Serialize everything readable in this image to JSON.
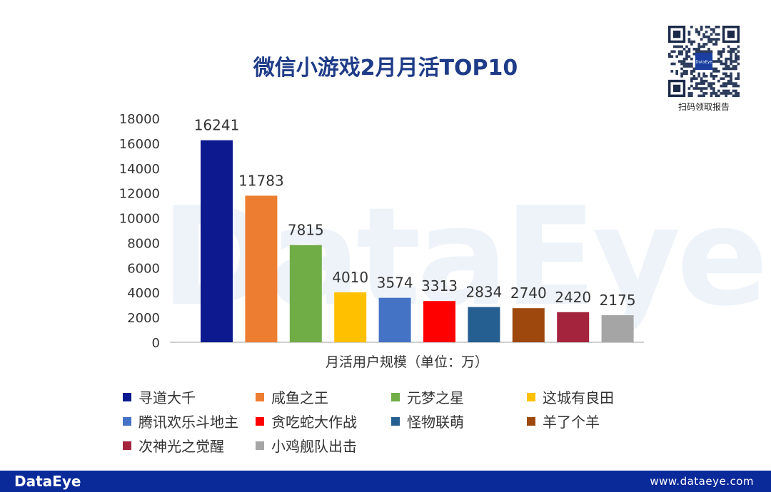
{
  "chart_data": {
    "type": "bar",
    "title": "微信小游戏2月月活TOP10",
    "xlabel": "月活用户规模（单位：万）",
    "ylabel": "",
    "ylim": [
      0,
      18000
    ],
    "yticks": [
      0,
      2000,
      4000,
      6000,
      8000,
      10000,
      12000,
      14000,
      16000,
      18000
    ],
    "grid": false,
    "legend_position": "bottom",
    "categories": [
      "寻道大千",
      "咸鱼之王",
      "元梦之星",
      "这城有良田",
      "腾讯欢乐斗地主",
      "贪吃蛇大作战",
      "怪物联萌",
      "羊了个羊",
      "次神光之觉醒",
      "小鸡舰队出击"
    ],
    "values": [
      16241,
      11783,
      7815,
      4010,
      3574,
      3313,
      2834,
      2740,
      2420,
      2175
    ],
    "colors": [
      "#0d1a8f",
      "#ed7d31",
      "#70ad47",
      "#ffc000",
      "#4472c4",
      "#ff0000",
      "#255e91",
      "#9e480e",
      "#a5243d",
      "#a5a5a5"
    ]
  },
  "watermark": "DataEye",
  "qr": {
    "center_text": "DataEye",
    "caption": "扫码领取报告"
  },
  "footer": {
    "brand": "DataEye",
    "url": "www.dataeye.com"
  }
}
